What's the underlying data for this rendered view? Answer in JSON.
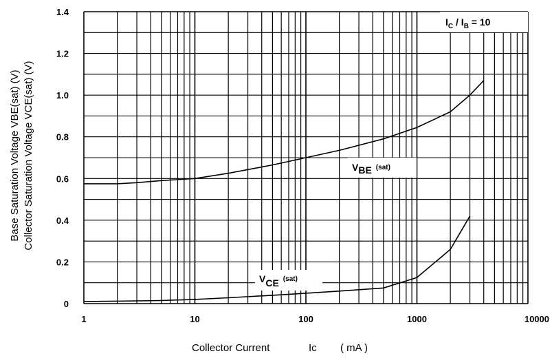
{
  "chart_data": {
    "type": "line",
    "x_scale": "log",
    "x_range": [
      1,
      10000
    ],
    "y_range": [
      0,
      1.4
    ],
    "grid": true,
    "x_ticks": [
      "1",
      "10",
      "100",
      "1000",
      "10000"
    ],
    "y_ticks": [
      "0",
      "0.2",
      "0.4",
      "0.6",
      "0.8",
      "1.0",
      "1.2",
      "1.4"
    ],
    "xlabel": {
      "main": "Collector Current",
      "symbol": "Ic",
      "unit": "( mA )"
    },
    "ylabel": {
      "line1": "Base Saturation Voltage  VBE(sat)  (V)",
      "line2": "Collector Saturation Voltage  VCE(sat)  (V)"
    },
    "condition": {
      "text_parts": [
        "I",
        "C",
        " / I",
        "B",
        " = 10"
      ]
    },
    "series": [
      {
        "name": "VBE (sat)",
        "label_main": "V",
        "label_sub": "BE",
        "label_suffix": "(sat)",
        "x": [
          1,
          2,
          3,
          5,
          10,
          20,
          50,
          100,
          200,
          500,
          1000,
          2000,
          3000,
          4000
        ],
        "y": [
          0.575,
          0.575,
          0.58,
          0.59,
          0.6,
          0.625,
          0.665,
          0.7,
          0.735,
          0.79,
          0.845,
          0.92,
          1.0,
          1.07
        ]
      },
      {
        "name": "VCE (sat)",
        "label_main": "V",
        "label_sub": "CE",
        "label_suffix": "(sat)",
        "x": [
          1,
          2,
          5,
          10,
          20,
          50,
          100,
          200,
          500,
          1000,
          2000,
          3000
        ],
        "y": [
          0.01,
          0.012,
          0.015,
          0.02,
          0.028,
          0.04,
          0.05,
          0.06,
          0.075,
          0.125,
          0.26,
          0.42
        ]
      }
    ]
  }
}
